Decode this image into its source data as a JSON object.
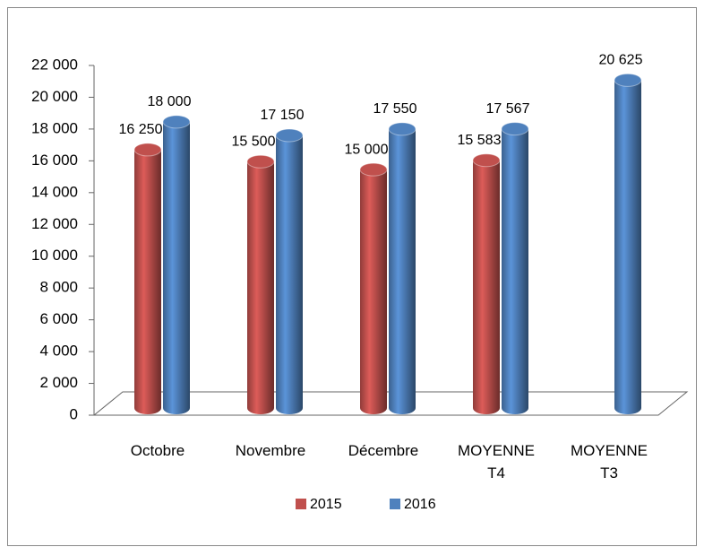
{
  "chart_data": {
    "type": "bar3d",
    "categories": [
      "Octobre",
      "Novembre",
      "Décembre",
      "MOYENNE T4",
      "MOYENNE T3"
    ],
    "series": [
      {
        "name": "2015",
        "color": "#c0504d",
        "values": [
          16250,
          15500,
          15000,
          15583,
          null
        ],
        "value_labels": [
          "16 250",
          "15 500",
          "15 000",
          "15 583",
          null
        ]
      },
      {
        "name": "2016",
        "color": "#4f81bd",
        "values": [
          18000,
          17150,
          17550,
          17567,
          20625
        ],
        "value_labels": [
          "18 000",
          "17 150",
          "17 550",
          "17 567",
          "20 625"
        ]
      }
    ],
    "ylim": [
      0,
      22000
    ],
    "yticks": [
      0,
      {
        "value": 2000,
        "label": "2 000"
      },
      {
        "value": 4000,
        "label": "4 000"
      },
      {
        "value": 6000,
        "label": "6 000"
      },
      {
        "value": 8000,
        "label": "8 000"
      },
      {
        "value": 10000,
        "label": "10 000"
      },
      {
        "value": 12000,
        "label": "12 000"
      },
      {
        "value": 14000,
        "label": "14 000"
      },
      {
        "value": 16000,
        "label": "16 000"
      },
      {
        "value": 18000,
        "label": "18 000"
      },
      {
        "value": 20000,
        "label": "20 000"
      },
      {
        "value": 22000,
        "label": "22 000"
      }
    ],
    "legend": "bottom"
  }
}
